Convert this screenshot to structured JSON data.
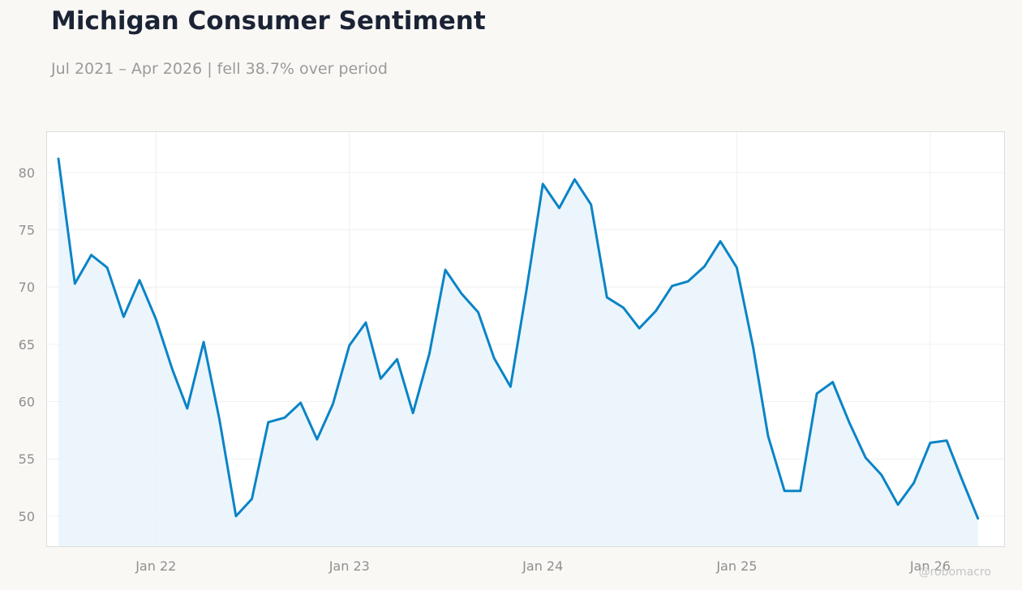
{
  "chart": {
    "title": "Michigan Consumer Sentiment",
    "subtitle": "Jul 2021 – Apr 2026 | fell 38.7% over period",
    "watermark": "@robomacro"
  },
  "colors": {
    "line": "#0a84c6",
    "fill": "#e9f3fb",
    "grid": "#ececec",
    "frame": "#dddddd",
    "background": "#f9f8f5",
    "plot_background": "#ffffff"
  },
  "chart_data": {
    "type": "area",
    "title": "Michigan Consumer Sentiment",
    "subtitle": "Jul 2021 – Apr 2026 | fell 38.7% over period",
    "xlabel": "",
    "ylabel": "",
    "grid": true,
    "x": [
      "2021-07",
      "2021-08",
      "2021-09",
      "2021-10",
      "2021-11",
      "2021-12",
      "2022-01",
      "2022-02",
      "2022-03",
      "2022-04",
      "2022-05",
      "2022-06",
      "2022-07",
      "2022-08",
      "2022-09",
      "2022-10",
      "2022-11",
      "2022-12",
      "2023-01",
      "2023-02",
      "2023-03",
      "2023-04",
      "2023-05",
      "2023-06",
      "2023-07",
      "2023-08",
      "2023-09",
      "2023-10",
      "2023-11",
      "2023-12",
      "2024-01",
      "2024-02",
      "2024-03",
      "2024-04",
      "2024-05",
      "2024-06",
      "2024-07",
      "2024-08",
      "2024-09",
      "2024-10",
      "2024-11",
      "2024-12",
      "2025-01",
      "2025-02",
      "2025-03",
      "2025-04",
      "2025-05",
      "2025-06",
      "2025-07",
      "2025-08",
      "2025-09",
      "2025-10",
      "2025-11",
      "2025-12",
      "2026-01",
      "2026-02",
      "2026-03",
      "2026-04"
    ],
    "series": [
      {
        "values": [
          81.2,
          70.3,
          72.8,
          71.7,
          67.4,
          70.6,
          67.2,
          62.8,
          59.4,
          65.2,
          58.4,
          50.0,
          51.5,
          58.2,
          58.6,
          59.9,
          56.7,
          59.8,
          64.9,
          66.9,
          62.0,
          63.7,
          59.0,
          64.2,
          71.5,
          69.4,
          67.8,
          63.8,
          61.3,
          69.7,
          79.0,
          76.9,
          79.4,
          77.2,
          69.1,
          68.2,
          66.4,
          67.9,
          70.1,
          70.5,
          71.8,
          74.0,
          71.7,
          64.7,
          57.0,
          52.2,
          52.2,
          60.7,
          61.7,
          58.2,
          55.1,
          53.6,
          51.0,
          52.9,
          56.4,
          56.6,
          53.3,
          49.8
        ]
      }
    ],
    "xlim": [
      "2021-06-08",
      "2026-05-22"
    ],
    "ylim": [
      47.3,
      83.6
    ],
    "x_ticks": [
      {
        "date": "2022-01",
        "label": "Jan 22"
      },
      {
        "date": "2023-01",
        "label": "Jan 23"
      },
      {
        "date": "2024-01",
        "label": "Jan 24"
      },
      {
        "date": "2025-01",
        "label": "Jan 25"
      },
      {
        "date": "2026-01",
        "label": "Jan 26"
      }
    ],
    "y_ticks": [
      50,
      55,
      60,
      65,
      70,
      75,
      80
    ]
  }
}
